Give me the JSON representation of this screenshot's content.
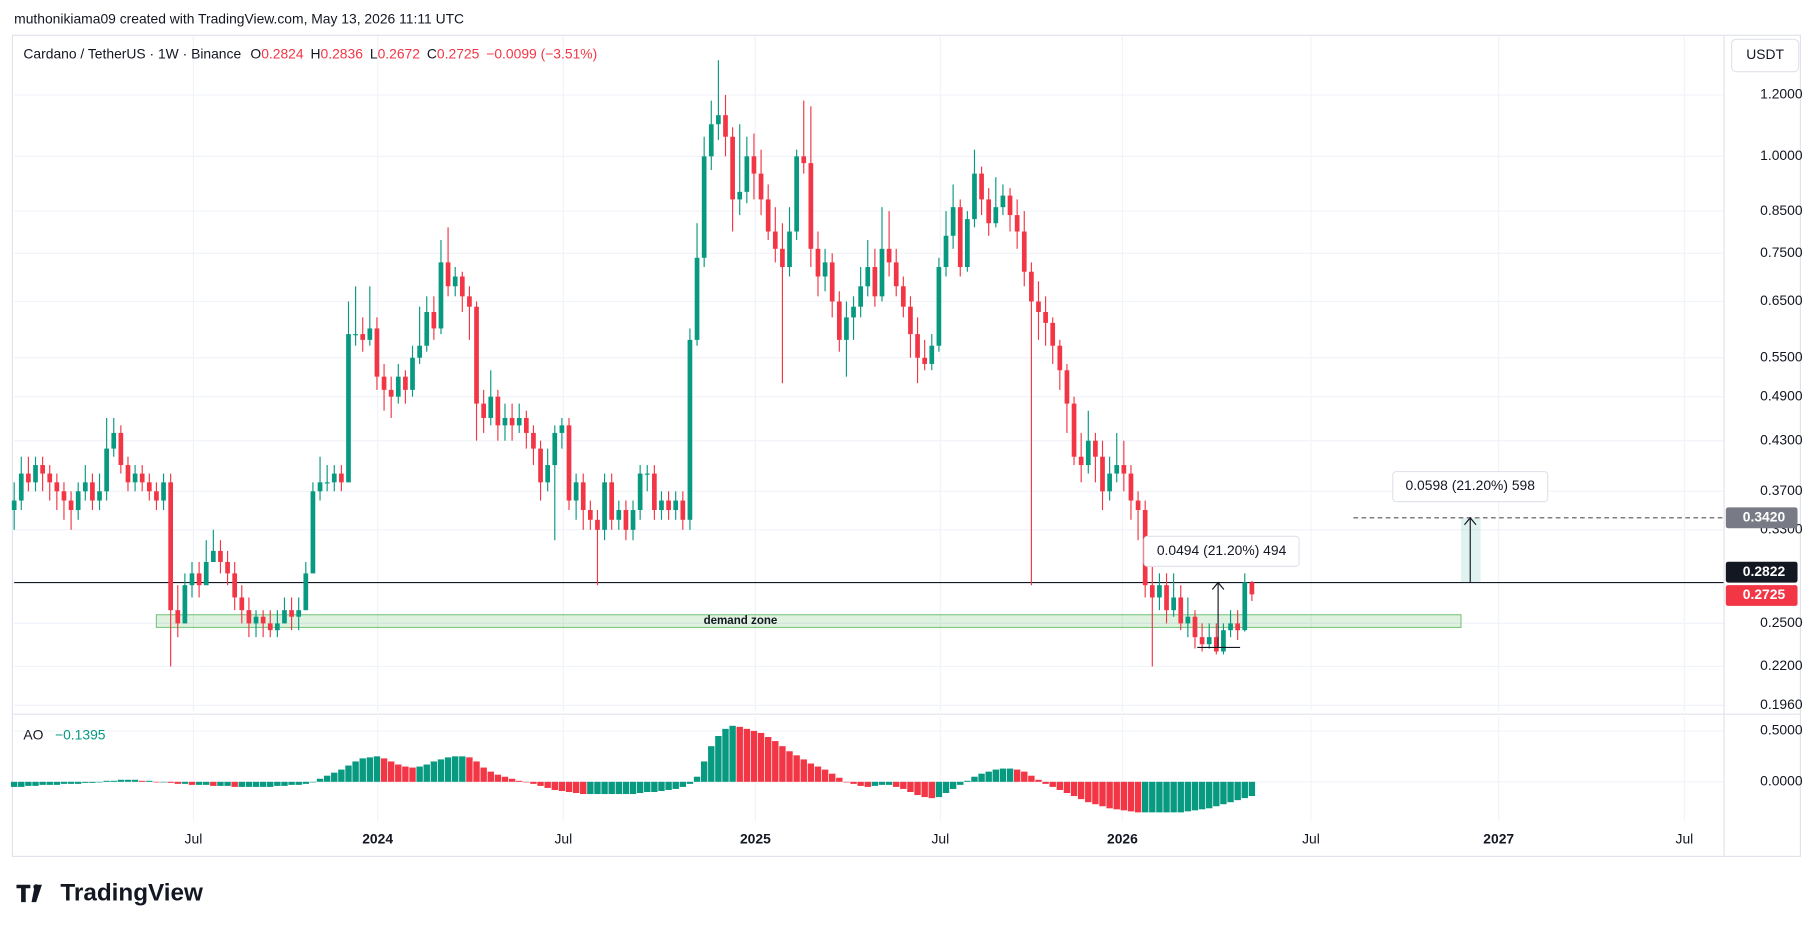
{
  "header": {
    "attribution": "muthonikiama09 created with TradingView.com, May 13, 2026 11:11 UTC"
  },
  "brand": "TradingView",
  "currency_button": "USDT",
  "chart_data": {
    "type": "candlestick",
    "legend": {
      "title": "Cardano / TetherUS · 1W · Binance",
      "ohlc": [
        {
          "key": "O",
          "value": 0.2824
        },
        {
          "key": "H",
          "value": 0.2836
        },
        {
          "key": "L",
          "value": 0.2672
        },
        {
          "key": "C",
          "value": 0.2725
        }
      ],
      "change": "−0.0099 (−3.51%)"
    },
    "up_color": "#089981",
    "down_color": "#f23645",
    "log_scale": true,
    "grid": true,
    "ylim": [
      0.1926,
      1.43
    ],
    "yticks": [
      {
        "value": 1.2,
        "label": "1.2000"
      },
      {
        "value": 1.0,
        "label": "1.0000"
      },
      {
        "value": 0.85,
        "label": "0.8500"
      },
      {
        "value": 0.75,
        "label": "0.7500"
      },
      {
        "value": 0.65,
        "label": "0.6500"
      },
      {
        "value": 0.55,
        "label": "0.5500"
      },
      {
        "value": 0.49,
        "label": "0.4900"
      },
      {
        "value": 0.43,
        "label": "0.4300"
      },
      {
        "value": 0.37,
        "label": "0.3700"
      },
      {
        "value": 0.33,
        "label": "0.3300"
      },
      {
        "value": 0.25,
        "label": "0.2500"
      },
      {
        "value": 0.22,
        "label": "0.2200"
      },
      {
        "value": 0.196,
        "label": "0.1960"
      }
    ],
    "xlim": [
      0,
      240.3
    ],
    "xticks": [
      {
        "value": 25.2,
        "label": "Jul"
      },
      {
        "value": 51.1,
        "label": "2024"
      },
      {
        "value": 77.2,
        "label": "Jul"
      },
      {
        "value": 104.2,
        "label": "2025"
      },
      {
        "value": 130.2,
        "label": "Jul"
      },
      {
        "value": 155.8,
        "label": "2026"
      },
      {
        "value": 182.3,
        "label": "Jul"
      },
      {
        "value": 208.7,
        "label": "2027"
      },
      {
        "value": 234.8,
        "label": "Jul"
      }
    ],
    "candles": {
      "open": [
        0.35,
        0.36,
        0.39,
        0.38,
        0.4,
        0.39,
        0.38,
        0.37,
        0.36,
        0.35,
        0.37,
        0.38,
        0.36,
        0.37,
        0.42,
        0.44,
        0.4,
        0.38,
        0.39,
        0.38,
        0.37,
        0.36,
        0.38,
        0.26,
        0.25,
        0.28,
        0.29,
        0.28,
        0.3,
        0.31,
        0.3,
        0.29,
        0.27,
        0.26,
        0.25,
        0.255,
        0.25,
        0.245,
        0.25,
        0.26,
        0.255,
        0.26,
        0.29,
        0.37,
        0.38,
        0.38,
        0.39,
        0.38,
        0.59,
        0.59,
        0.58,
        0.6,
        0.52,
        0.5,
        0.49,
        0.52,
        0.5,
        0.55,
        0.57,
        0.63,
        0.6,
        0.73,
        0.68,
        0.7,
        0.66,
        0.64,
        0.48,
        0.46,
        0.49,
        0.45,
        0.46,
        0.45,
        0.46,
        0.44,
        0.42,
        0.38,
        0.4,
        0.44,
        0.45,
        0.36,
        0.38,
        0.35,
        0.34,
        0.33,
        0.38,
        0.34,
        0.35,
        0.33,
        0.35,
        0.39,
        0.39,
        0.35,
        0.36,
        0.35,
        0.36,
        0.34,
        0.58,
        0.74,
        1.0,
        1.1,
        1.13,
        1.06,
        0.88,
        0.9,
        1.0,
        0.95,
        0.88,
        0.8,
        0.76,
        0.72,
        0.8,
        1.0,
        0.98,
        0.76,
        0.7,
        0.73,
        0.65,
        0.58,
        0.62,
        0.64,
        0.68,
        0.72,
        0.66,
        0.76,
        0.73,
        0.68,
        0.64,
        0.59,
        0.55,
        0.54,
        0.57,
        0.72,
        0.79,
        0.86,
        0.72,
        0.83,
        0.95,
        0.88,
        0.82,
        0.86,
        0.89,
        0.84,
        0.8,
        0.71,
        0.65,
        0.63,
        0.61,
        0.57,
        0.53,
        0.48,
        0.41,
        0.4,
        0.43,
        0.41,
        0.37,
        0.39,
        0.4,
        0.39,
        0.36,
        0.35,
        0.28,
        0.27,
        0.28,
        0.26,
        0.27,
        0.25,
        0.255,
        0.24,
        0.235,
        0.24,
        0.23,
        0.245,
        0.25,
        0.245,
        0.2824
      ],
      "high": [
        0.38,
        0.41,
        0.41,
        0.41,
        0.41,
        0.4,
        0.39,
        0.38,
        0.37,
        0.38,
        0.4,
        0.39,
        0.39,
        0.46,
        0.46,
        0.45,
        0.41,
        0.4,
        0.4,
        0.39,
        0.38,
        0.39,
        0.39,
        0.28,
        0.29,
        0.3,
        0.3,
        0.32,
        0.33,
        0.32,
        0.31,
        0.3,
        0.28,
        0.27,
        0.26,
        0.26,
        0.26,
        0.26,
        0.27,
        0.27,
        0.27,
        0.3,
        0.38,
        0.41,
        0.4,
        0.4,
        0.4,
        0.65,
        0.68,
        0.62,
        0.68,
        0.62,
        0.54,
        0.52,
        0.54,
        0.53,
        0.57,
        0.64,
        0.66,
        0.66,
        0.78,
        0.81,
        0.72,
        0.71,
        0.68,
        0.65,
        0.5,
        0.53,
        0.5,
        0.48,
        0.48,
        0.48,
        0.47,
        0.45,
        0.43,
        0.42,
        0.45,
        0.46,
        0.46,
        0.39,
        0.39,
        0.36,
        0.35,
        0.39,
        0.39,
        0.36,
        0.36,
        0.36,
        0.4,
        0.4,
        0.4,
        0.37,
        0.37,
        0.37,
        0.37,
        0.6,
        0.82,
        1.06,
        1.18,
        1.33,
        1.2,
        1.09,
        1.1,
        1.06,
        1.07,
        1.02,
        0.92,
        0.86,
        0.82,
        0.86,
        1.02,
        1.18,
        1.16,
        0.8,
        0.76,
        0.75,
        0.67,
        0.65,
        0.66,
        0.72,
        0.78,
        0.76,
        0.86,
        0.85,
        0.76,
        0.7,
        0.66,
        0.62,
        0.58,
        0.59,
        0.74,
        0.85,
        0.92,
        0.88,
        0.85,
        1.02,
        0.97,
        0.91,
        0.94,
        0.92,
        0.91,
        0.88,
        0.85,
        0.73,
        0.69,
        0.66,
        0.62,
        0.58,
        0.54,
        0.49,
        0.44,
        0.47,
        0.44,
        0.43,
        0.41,
        0.44,
        0.43,
        0.4,
        0.37,
        0.36,
        0.31,
        0.29,
        0.29,
        0.29,
        0.28,
        0.27,
        0.26,
        0.25,
        0.25,
        0.25,
        0.25,
        0.26,
        0.26,
        0.29,
        0.2836
      ],
      "low": [
        0.33,
        0.35,
        0.37,
        0.37,
        0.37,
        0.36,
        0.35,
        0.34,
        0.33,
        0.34,
        0.36,
        0.35,
        0.35,
        0.36,
        0.41,
        0.39,
        0.37,
        0.37,
        0.37,
        0.36,
        0.35,
        0.35,
        0.22,
        0.24,
        0.25,
        0.27,
        0.27,
        0.28,
        0.3,
        0.29,
        0.28,
        0.26,
        0.25,
        0.24,
        0.24,
        0.24,
        0.24,
        0.24,
        0.25,
        0.245,
        0.245,
        0.26,
        0.29,
        0.36,
        0.37,
        0.37,
        0.37,
        0.38,
        0.57,
        0.56,
        0.57,
        0.5,
        0.47,
        0.46,
        0.48,
        0.48,
        0.49,
        0.54,
        0.56,
        0.58,
        0.59,
        0.66,
        0.66,
        0.63,
        0.58,
        0.43,
        0.44,
        0.45,
        0.43,
        0.43,
        0.43,
        0.44,
        0.42,
        0.4,
        0.36,
        0.37,
        0.32,
        0.42,
        0.35,
        0.34,
        0.33,
        0.33,
        0.28,
        0.32,
        0.33,
        0.33,
        0.32,
        0.32,
        0.34,
        0.37,
        0.34,
        0.34,
        0.34,
        0.34,
        0.33,
        0.33,
        0.57,
        0.72,
        0.96,
        1.05,
        1.0,
        0.8,
        0.84,
        0.87,
        0.88,
        0.84,
        0.78,
        0.73,
        0.51,
        0.7,
        0.78,
        0.95,
        0.72,
        0.66,
        0.67,
        0.62,
        0.56,
        0.52,
        0.58,
        0.62,
        0.66,
        0.64,
        0.65,
        0.7,
        0.66,
        0.62,
        0.55,
        0.51,
        0.53,
        0.53,
        0.56,
        0.7,
        0.76,
        0.7,
        0.71,
        0.81,
        0.84,
        0.79,
        0.81,
        0.84,
        0.8,
        0.76,
        0.68,
        0.28,
        0.58,
        0.57,
        0.54,
        0.5,
        0.44,
        0.4,
        0.38,
        0.39,
        0.38,
        0.35,
        0.36,
        0.38,
        0.37,
        0.34,
        0.32,
        0.27,
        0.22,
        0.26,
        0.25,
        0.255,
        0.245,
        0.24,
        0.232,
        0.23,
        0.232,
        0.228,
        0.228,
        0.24,
        0.238,
        0.244,
        0.2672
      ],
      "close": [
        0.36,
        0.39,
        0.38,
        0.4,
        0.39,
        0.38,
        0.37,
        0.36,
        0.35,
        0.37,
        0.38,
        0.36,
        0.37,
        0.42,
        0.44,
        0.4,
        0.38,
        0.39,
        0.38,
        0.37,
        0.36,
        0.38,
        0.26,
        0.25,
        0.28,
        0.29,
        0.28,
        0.3,
        0.31,
        0.3,
        0.29,
        0.27,
        0.26,
        0.25,
        0.255,
        0.25,
        0.245,
        0.25,
        0.26,
        0.255,
        0.26,
        0.29,
        0.37,
        0.38,
        0.38,
        0.39,
        0.38,
        0.59,
        0.59,
        0.58,
        0.6,
        0.52,
        0.5,
        0.49,
        0.52,
        0.5,
        0.55,
        0.57,
        0.63,
        0.6,
        0.73,
        0.68,
        0.7,
        0.66,
        0.64,
        0.48,
        0.46,
        0.49,
        0.45,
        0.46,
        0.45,
        0.46,
        0.44,
        0.42,
        0.38,
        0.4,
        0.44,
        0.45,
        0.36,
        0.38,
        0.35,
        0.34,
        0.33,
        0.38,
        0.34,
        0.35,
        0.33,
        0.35,
        0.39,
        0.39,
        0.35,
        0.36,
        0.35,
        0.36,
        0.34,
        0.58,
        0.74,
        1.0,
        1.1,
        1.13,
        1.06,
        0.88,
        0.9,
        1.0,
        0.95,
        0.88,
        0.8,
        0.76,
        0.72,
        0.8,
        1.0,
        0.98,
        0.76,
        0.7,
        0.73,
        0.65,
        0.58,
        0.62,
        0.64,
        0.68,
        0.72,
        0.66,
        0.76,
        0.73,
        0.68,
        0.64,
        0.59,
        0.55,
        0.54,
        0.57,
        0.72,
        0.79,
        0.86,
        0.72,
        0.83,
        0.95,
        0.88,
        0.82,
        0.86,
        0.89,
        0.84,
        0.8,
        0.71,
        0.65,
        0.63,
        0.61,
        0.57,
        0.53,
        0.48,
        0.41,
        0.4,
        0.43,
        0.41,
        0.37,
        0.39,
        0.4,
        0.39,
        0.36,
        0.35,
        0.28,
        0.27,
        0.28,
        0.26,
        0.27,
        0.25,
        0.255,
        0.24,
        0.235,
        0.24,
        0.23,
        0.245,
        0.25,
        0.245,
        0.2824,
        0.2725
      ]
    },
    "hline": {
      "value": 0.2822,
      "label": "0.2822"
    },
    "last_price": {
      "value": 0.2725,
      "label": "0.2725"
    },
    "demand_zone": {
      "label": "demand zone",
      "top": 0.2565,
      "bottom": 0.247
    },
    "measures": [
      {
        "label": "0.0598 (21.20%) 598",
        "from": 0.2822,
        "to": 0.342,
        "to_label": "0.3420"
      },
      {
        "label": "0.0494 (21.20%) 494",
        "from": 0.2328,
        "to": 0.2822
      }
    ],
    "indicator": {
      "name": "AO",
      "value_label": "−0.1395",
      "ylim": [
        -0.386,
        0.636
      ],
      "yticks": [
        {
          "value": 0.5,
          "label": "0.5000"
        },
        {
          "value": 0,
          "label": "0.0000"
        }
      ],
      "values": [
        -0.05,
        -0.05,
        -0.04,
        -0.04,
        -0.03,
        -0.03,
        -0.03,
        -0.02,
        -0.02,
        -0.02,
        -0.01,
        -0.01,
        0,
        0.01,
        0.01,
        0.02,
        0.02,
        0.02,
        0.01,
        0.01,
        0,
        0,
        -0.01,
        -0.02,
        -0.02,
        -0.03,
        -0.03,
        -0.03,
        -0.04,
        -0.04,
        -0.04,
        -0.05,
        -0.05,
        -0.05,
        -0.05,
        -0.05,
        -0.05,
        -0.04,
        -0.04,
        -0.03,
        -0.03,
        -0.02,
        0,
        0.03,
        0.06,
        0.09,
        0.12,
        0.16,
        0.2,
        0.23,
        0.24,
        0.25,
        0.23,
        0.2,
        0.17,
        0.15,
        0.14,
        0.15,
        0.17,
        0.2,
        0.22,
        0.24,
        0.25,
        0.25,
        0.24,
        0.2,
        0.14,
        0.1,
        0.07,
        0.05,
        0.03,
        0.01,
        0,
        -0.02,
        -0.04,
        -0.06,
        -0.08,
        -0.09,
        -0.1,
        -0.11,
        -0.12,
        -0.12,
        -0.12,
        -0.12,
        -0.12,
        -0.12,
        -0.12,
        -0.12,
        -0.11,
        -0.1,
        -0.1,
        -0.09,
        -0.08,
        -0.07,
        -0.05,
        -0.02,
        0.05,
        0.2,
        0.35,
        0.45,
        0.52,
        0.55,
        0.54,
        0.52,
        0.5,
        0.48,
        0.44,
        0.4,
        0.35,
        0.3,
        0.26,
        0.22,
        0.18,
        0.15,
        0.12,
        0.08,
        0.04,
        0,
        -0.02,
        -0.04,
        -0.05,
        -0.04,
        -0.03,
        -0.03,
        -0.05,
        -0.07,
        -0.1,
        -0.13,
        -0.15,
        -0.16,
        -0.15,
        -0.11,
        -0.07,
        -0.03,
        0.01,
        0.05,
        0.08,
        0.1,
        0.12,
        0.13,
        0.13,
        0.12,
        0.1,
        0.06,
        0.02,
        -0.02,
        -0.05,
        -0.08,
        -0.11,
        -0.14,
        -0.17,
        -0.2,
        -0.22,
        -0.24,
        -0.26,
        -0.27,
        -0.28,
        -0.29,
        -0.3,
        -0.3,
        -0.3,
        -0.3,
        -0.3,
        -0.3,
        -0.3,
        -0.29,
        -0.28,
        -0.27,
        -0.26,
        -0.24,
        -0.22,
        -0.2,
        -0.18,
        -0.16,
        -0.1395
      ]
    }
  }
}
